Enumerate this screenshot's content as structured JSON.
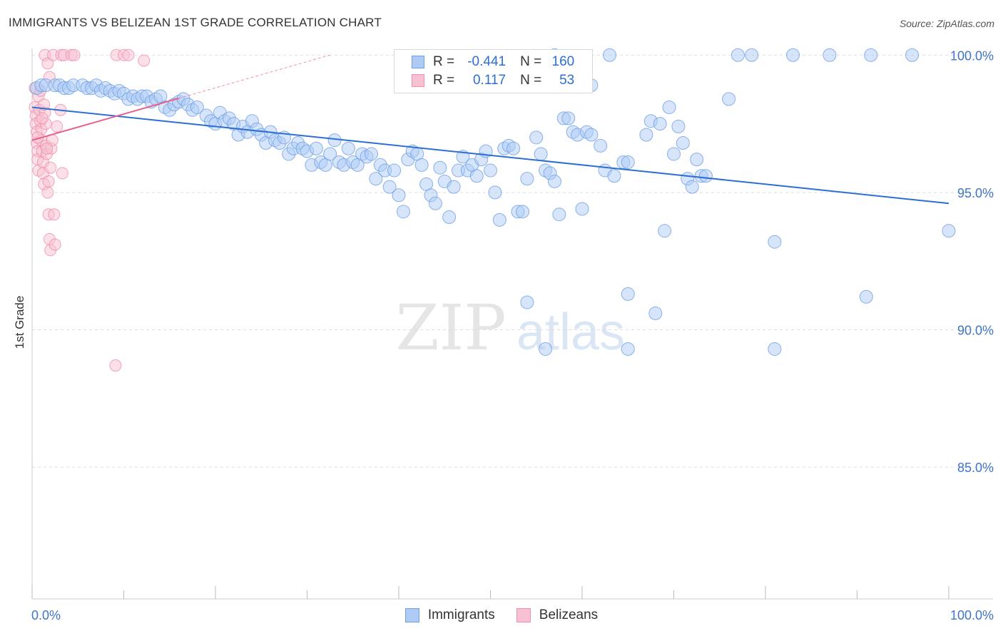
{
  "title": "IMMIGRANTS VS BELIZEAN 1ST GRADE CORRELATION CHART",
  "source": "Source: ZipAtlas.com",
  "watermark": {
    "zip": "ZIP",
    "atlas": "atlas"
  },
  "legend_top": {
    "rows": [
      {
        "r_label": "R =",
        "r_value": "-0.441",
        "n_label": "N =",
        "n_value": "160",
        "color": "#aecbf5",
        "border": "#6f9fe3"
      },
      {
        "r_label": "R =",
        "r_value": "0.117",
        "n_label": "N =",
        "n_value": "53",
        "color": "#f8c1d2",
        "border": "#ee8fae"
      }
    ]
  },
  "legend_bottom": [
    {
      "label": "Immigrants",
      "color": "#aecbf5",
      "border": "#6f9fe3"
    },
    {
      "label": "Belizeans",
      "color": "#f8c1d2",
      "border": "#ee8fae"
    }
  ],
  "colors": {
    "blue": "#2d6fd1",
    "blue_fill": "#aecbf5",
    "pink": "#e8608e",
    "pink_fill": "#f8c1d2",
    "grid": "#dddddd",
    "tick_text": "#3e74c9"
  },
  "chart_data": {
    "type": "scatter",
    "title": "IMMIGRANTS VS BELIZEAN 1ST GRADE CORRELATION CHART",
    "xlabel": "",
    "ylabel": "1st Grade",
    "xlim": [
      0,
      100
    ],
    "ylim": [
      80.2,
      100.5
    ],
    "x_tick_labels": [
      "0.0%",
      "100.0%"
    ],
    "y_ticks": [
      100,
      95,
      90,
      85
    ],
    "y_tick_labels": [
      "100.0%",
      "95.0%",
      "90.0%",
      "85.0%"
    ],
    "grid": "horizontal dashed",
    "legend_placement": "bottom",
    "series": [
      {
        "name": "Immigrants",
        "r": -0.441,
        "n": 160,
        "trend": {
          "x": [
            0,
            100
          ],
          "y": [
            98.1,
            94.6
          ]
        },
        "points": [
          [
            0.5,
            98.8
          ],
          [
            1.0,
            98.9
          ],
          [
            1.5,
            98.9
          ],
          [
            2.5,
            98.9
          ],
          [
            3.0,
            98.9
          ],
          [
            3.5,
            98.8
          ],
          [
            4.0,
            98.8
          ],
          [
            4.5,
            98.9
          ],
          [
            5.5,
            98.9
          ],
          [
            6.0,
            98.8
          ],
          [
            6.5,
            98.8
          ],
          [
            7.0,
            98.9
          ],
          [
            7.5,
            98.7
          ],
          [
            8.0,
            98.8
          ],
          [
            8.5,
            98.7
          ],
          [
            9.0,
            98.6
          ],
          [
            9.5,
            98.7
          ],
          [
            10.0,
            98.6
          ],
          [
            10.5,
            98.4
          ],
          [
            11.0,
            98.5
          ],
          [
            11.5,
            98.4
          ],
          [
            12.0,
            98.5
          ],
          [
            12.5,
            98.5
          ],
          [
            13.0,
            98.3
          ],
          [
            13.5,
            98.4
          ],
          [
            14.0,
            98.5
          ],
          [
            14.5,
            98.1
          ],
          [
            15.0,
            98.0
          ],
          [
            15.5,
            98.2
          ],
          [
            16.0,
            98.3
          ],
          [
            16.5,
            98.4
          ],
          [
            17.0,
            98.2
          ],
          [
            17.5,
            98.0
          ],
          [
            18.0,
            98.1
          ],
          [
            19.0,
            97.8
          ],
          [
            19.5,
            97.6
          ],
          [
            20.0,
            97.5
          ],
          [
            20.5,
            97.9
          ],
          [
            21.0,
            97.6
          ],
          [
            21.5,
            97.7
          ],
          [
            22.0,
            97.5
          ],
          [
            22.5,
            97.1
          ],
          [
            23.0,
            97.4
          ],
          [
            23.5,
            97.2
          ],
          [
            24.0,
            97.6
          ],
          [
            24.5,
            97.3
          ],
          [
            25.0,
            97.1
          ],
          [
            25.5,
            96.8
          ],
          [
            26.0,
            97.2
          ],
          [
            26.5,
            96.9
          ],
          [
            27.0,
            96.8
          ],
          [
            27.5,
            97.0
          ],
          [
            28.0,
            96.4
          ],
          [
            28.5,
            96.6
          ],
          [
            29.0,
            96.8
          ],
          [
            29.5,
            96.6
          ],
          [
            30.0,
            96.5
          ],
          [
            30.5,
            96.0
          ],
          [
            31.0,
            96.6
          ],
          [
            31.5,
            96.1
          ],
          [
            32.0,
            96.0
          ],
          [
            32.5,
            96.4
          ],
          [
            33.0,
            96.9
          ],
          [
            33.5,
            96.1
          ],
          [
            34.0,
            96.0
          ],
          [
            34.5,
            96.6
          ],
          [
            35.0,
            96.1
          ],
          [
            35.5,
            96.0
          ],
          [
            36.0,
            96.4
          ],
          [
            36.5,
            96.3
          ],
          [
            37.0,
            96.4
          ],
          [
            37.5,
            95.5
          ],
          [
            38.0,
            96.0
          ],
          [
            38.5,
            95.8
          ],
          [
            39.0,
            95.2
          ],
          [
            39.5,
            95.8
          ],
          [
            40.0,
            94.9
          ],
          [
            40.5,
            94.3
          ],
          [
            41.0,
            96.2
          ],
          [
            41.5,
            96.5
          ],
          [
            42.0,
            96.4
          ],
          [
            42.5,
            96.0
          ],
          [
            43.0,
            95.3
          ],
          [
            43.5,
            94.9
          ],
          [
            44.0,
            94.6
          ],
          [
            44.5,
            95.9
          ],
          [
            45.0,
            95.4
          ],
          [
            45.5,
            94.1
          ],
          [
            46.0,
            95.2
          ],
          [
            46.5,
            95.8
          ],
          [
            47.0,
            96.3
          ],
          [
            47.5,
            95.8
          ],
          [
            48.0,
            96.0
          ],
          [
            48.5,
            95.6
          ],
          [
            49.0,
            96.2
          ],
          [
            49.5,
            96.5
          ],
          [
            50.0,
            95.8
          ],
          [
            50.5,
            95.0
          ],
          [
            51.0,
            94.0
          ],
          [
            51.5,
            96.6
          ],
          [
            52.0,
            96.7
          ],
          [
            52.5,
            96.6
          ],
          [
            53.0,
            94.3
          ],
          [
            53.5,
            94.3
          ],
          [
            54.0,
            95.5
          ],
          [
            55.0,
            97.0
          ],
          [
            55.5,
            96.4
          ],
          [
            56.0,
            95.8
          ],
          [
            56.5,
            95.7
          ],
          [
            57.0,
            95.4
          ],
          [
            57.5,
            94.2
          ],
          [
            58.0,
            97.7
          ],
          [
            58.5,
            97.7
          ],
          [
            59.0,
            97.2
          ],
          [
            59.5,
            97.1
          ],
          [
            60.0,
            94.4
          ],
          [
            60.5,
            97.2
          ],
          [
            61.0,
            97.1
          ],
          [
            62.0,
            96.7
          ],
          [
            62.5,
            95.8
          ],
          [
            63.0,
            100.0
          ],
          [
            63.5,
            95.6
          ],
          [
            64.5,
            96.1
          ],
          [
            65.0,
            96.1
          ],
          [
            67.0,
            97.1
          ],
          [
            67.5,
            97.6
          ],
          [
            68.0,
            90.6
          ],
          [
            68.5,
            97.5
          ],
          [
            69.0,
            93.6
          ],
          [
            69.5,
            98.1
          ],
          [
            70.0,
            96.4
          ],
          [
            70.5,
            97.4
          ],
          [
            71.0,
            96.8
          ],
          [
            71.5,
            95.5
          ],
          [
            72.0,
            95.2
          ],
          [
            72.5,
            96.2
          ],
          [
            73.0,
            95.6
          ],
          [
            73.5,
            95.6
          ],
          [
            76.0,
            98.4
          ],
          [
            77.0,
            100.0
          ],
          [
            78.5,
            100.0
          ],
          [
            81.0,
            93.2
          ],
          [
            83.0,
            100.0
          ],
          [
            87.0,
            100.0
          ],
          [
            91.0,
            91.2
          ],
          [
            91.5,
            100.0
          ],
          [
            96.0,
            100.0
          ],
          [
            100.0,
            93.6
          ],
          [
            54.0,
            91.0
          ],
          [
            56.0,
            89.3
          ],
          [
            65.0,
            91.3
          ],
          [
            81.0,
            89.3
          ],
          [
            65.0,
            89.3
          ],
          [
            57.0,
            100.0
          ],
          [
            60.0,
            98.9
          ],
          [
            61.0,
            98.9
          ]
        ]
      },
      {
        "name": "Belizeans",
        "r": 0.117,
        "n": 53,
        "trend": {
          "x": [
            0,
            32.5
          ],
          "y": [
            96.9,
            100.0
          ]
        },
        "points": [
          [
            0.3,
            98.8
          ],
          [
            0.3,
            98.1
          ],
          [
            0.4,
            97.8
          ],
          [
            0.4,
            97.5
          ],
          [
            0.5,
            97.2
          ],
          [
            0.5,
            96.8
          ],
          [
            0.6,
            96.5
          ],
          [
            0.6,
            96.2
          ],
          [
            0.7,
            95.8
          ],
          [
            0.7,
            98.5
          ],
          [
            0.8,
            98.0
          ],
          [
            0.9,
            97.6
          ],
          [
            1.0,
            97.3
          ],
          [
            1.0,
            96.9
          ],
          [
            1.1,
            96.5
          ],
          [
            1.2,
            96.1
          ],
          [
            1.2,
            95.7
          ],
          [
            1.3,
            95.3
          ],
          [
            1.4,
            97.9
          ],
          [
            1.5,
            97.5
          ],
          [
            1.5,
            96.7
          ],
          [
            1.6,
            96.4
          ],
          [
            1.7,
            95.0
          ],
          [
            1.8,
            94.2
          ],
          [
            1.9,
            93.3
          ],
          [
            2.0,
            92.9
          ],
          [
            2.1,
            96.6
          ],
          [
            2.2,
            96.9
          ],
          [
            2.4,
            94.2
          ],
          [
            2.5,
            93.1
          ],
          [
            2.7,
            97.4
          ],
          [
            3.1,
            98.0
          ],
          [
            3.3,
            95.7
          ],
          [
            1.4,
            100.0
          ],
          [
            1.7,
            99.7
          ],
          [
            1.9,
            99.2
          ],
          [
            2.3,
            100.0
          ],
          [
            3.2,
            100.0
          ],
          [
            3.5,
            100.0
          ],
          [
            4.3,
            100.0
          ],
          [
            4.6,
            100.0
          ],
          [
            9.2,
            100.0
          ],
          [
            10.0,
            100.0
          ],
          [
            10.5,
            100.0
          ],
          [
            12.2,
            99.8
          ],
          [
            0.9,
            98.7
          ],
          [
            1.1,
            97.7
          ],
          [
            1.3,
            98.2
          ],
          [
            1.6,
            96.6
          ],
          [
            1.8,
            95.4
          ],
          [
            9.1,
            88.7
          ],
          [
            0.6,
            97.0
          ],
          [
            2.0,
            95.9
          ]
        ]
      }
    ]
  }
}
